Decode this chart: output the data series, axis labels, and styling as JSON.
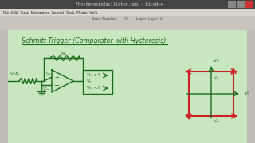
{
  "title": "*HysteresisOscillator.nop - Kicad++",
  "menu_items": "File  Edit  View  Navigation  Journal  Tools  Plugin  Help",
  "heading": "Schmitt Trigger (Comparator with Hysteresis)",
  "bg_color": "#c8e6c0",
  "toolbar_bg": "#c8c0b8",
  "canvas_bg": "#c8e6c0",
  "grid_color": "#b0d8a8",
  "circuit_color": "#1a6b1a",
  "red_color": "#cc2222",
  "title_bar_bg": "#3a3a3a",
  "title_bar_color": "#dddddd",
  "menu_bar_bg": "#d8d0c8",
  "close_btn": "#cc0000",
  "window_border": "#888888"
}
